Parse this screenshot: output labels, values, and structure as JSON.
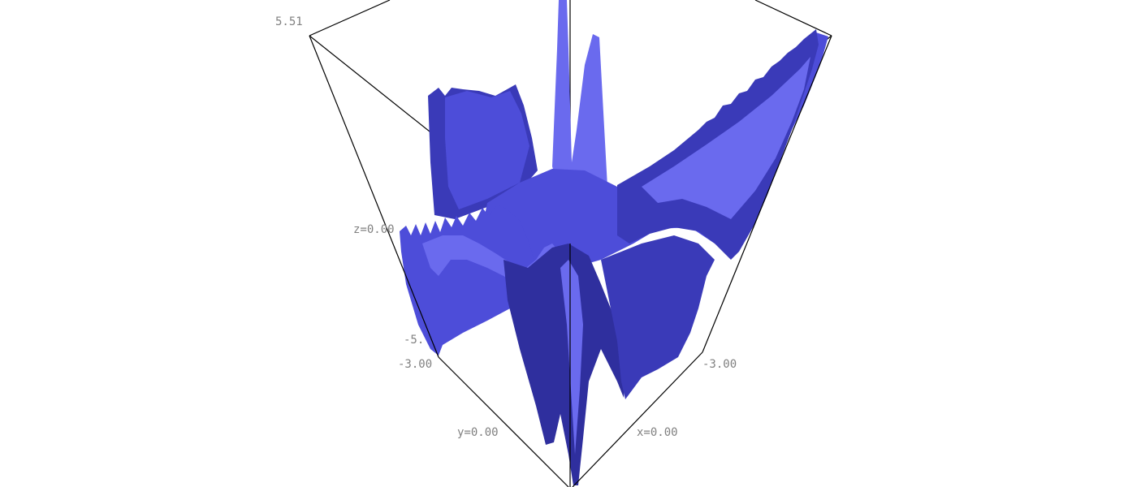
{
  "chart_data": {
    "type": "surface3d",
    "title": "",
    "surface_color": "#4d4dd9",
    "background": "#ffffff",
    "box_color": "#000000",
    "label_color": "#808080",
    "z_range": [
      -5.51,
      5.51
    ],
    "x_range": [
      -3.0,
      3.0
    ],
    "y_range": [
      -3.0,
      3.0
    ],
    "labels": {
      "z_max": "5.51",
      "z_mid": "z=0.00",
      "z_min": "-5.51",
      "z_min_visible": "-5.",
      "y_min": "-3.00",
      "y_mid": "y=0.00",
      "x_min": "-3.00",
      "x_mid": "x=0.00"
    },
    "features": [
      {
        "name": "central-spike",
        "z": 5.51
      },
      {
        "name": "front-trough",
        "z": -5.51
      },
      {
        "name": "left-plateau",
        "z": 3.5
      },
      {
        "name": "right-ridge",
        "z": 4.5
      },
      {
        "name": "left-ripple-band",
        "z": 0.5
      }
    ]
  }
}
